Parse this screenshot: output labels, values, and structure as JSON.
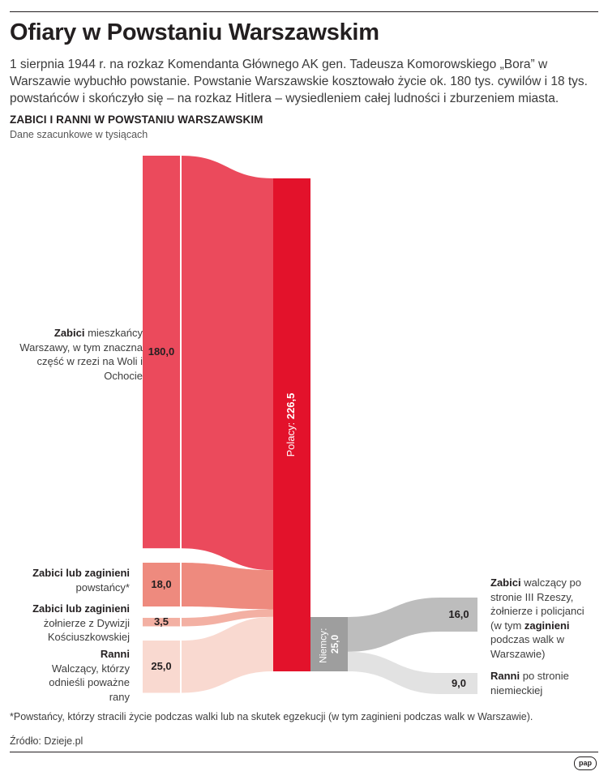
{
  "title": "Ofiary w Powstaniu Warszawskim",
  "intro": "1 sierpnia 1944 r. na rozkaz Komendanta Głównego AK gen. Tadeusza Komorowskiego „Bora” w Warszawie wybuchło powstanie. Powstanie Warszawskie kosztowało życie ok. 180 tys. cywilów i 18 tys. powstańców i skończyło się – na rozkaz Hitlera – wysiedleniem całej ludności i zburzeniem miasta.",
  "chart_title": "ZABICI I RANNI W POWSTANIU WARSZAWSKIM",
  "chart_subtitle": "Dane szacunkowe w tysiącach",
  "notes": {
    "civilians": {
      "bold": "Zabici",
      "rest": " mieszkańcy Warszawy, w tym znaczna część w rzezi na Woli i Ochocie"
    },
    "insurgents": {
      "bold": "Zabici lub zaginieni",
      "rest": "powstańcy*"
    },
    "berling": {
      "bold": "Zabici lub zaginieni",
      "rest": "żołnierze z Dywizji Kościuszkowskiej"
    },
    "wounded_pl": {
      "bold": "Ranni",
      "rest": "Walczący, którzy odnieśli poważne rany"
    },
    "killed_de": {
      "bold1": "Zabici",
      "rest1": " walczący po stronie III Rzeszy, żołnierze i policjanci (w tym ",
      "bold2": "zaginieni",
      "rest2": " podczas walk w Warszawie)"
    },
    "wounded_de": {
      "bold": "Ranni",
      "rest": " po stronie niemieckiej"
    }
  },
  "footnote": "*Powstańcy, którzy stracili życie podczas walki lub na skutek egzekucji (w tym zaginieni podczas walk w Warszawie).",
  "source": "Źródło: Dzieje.pl",
  "logo": "pap",
  "colors": {
    "red_main": "#e3122b",
    "red_civilians": "#eb4a5c",
    "salmon": "#ee8a7e",
    "light_salmon": "#f3b0a3",
    "pale_pink": "#f9d9d0",
    "gray_dark": "#9e9e9e",
    "gray_mid": "#bdbdbd",
    "gray_light": "#e2e2e2"
  },
  "chart_data": {
    "type": "sankey",
    "title": "ZABICI I RANNI W POWSTANIU WARSZAWSKIM",
    "subtitle": "Dane szacunkowe w tysiącach",
    "unit": "tys.",
    "nodes": [
      {
        "id": "civilians",
        "value": 180.0,
        "label": "180,0",
        "side": "Polacy"
      },
      {
        "id": "insurgents",
        "value": 18.0,
        "label": "18,0",
        "side": "Polacy"
      },
      {
        "id": "berling",
        "value": 3.5,
        "label": "3,5",
        "side": "Polacy"
      },
      {
        "id": "wounded_pl",
        "value": 25.0,
        "label": "25,0",
        "side": "Polacy"
      },
      {
        "id": "polacy",
        "value": 226.5,
        "label_prefix": "Polacy: ",
        "label": "226,5"
      },
      {
        "id": "niemcy",
        "value": 25.0,
        "label_prefix": "Niemcy: ",
        "label": "25,0"
      },
      {
        "id": "killed_de",
        "value": 16.0,
        "label": "16,0",
        "side": "Niemcy"
      },
      {
        "id": "wounded_de",
        "value": 9.0,
        "label": "9,0",
        "side": "Niemcy"
      }
    ],
    "links": [
      {
        "source": "civilians",
        "target": "polacy",
        "value": 180.0
      },
      {
        "source": "insurgents",
        "target": "polacy",
        "value": 18.0
      },
      {
        "source": "berling",
        "target": "polacy",
        "value": 3.5
      },
      {
        "source": "wounded_pl",
        "target": "polacy",
        "value": 25.0
      },
      {
        "source": "niemcy",
        "target": "killed_de",
        "value": 16.0
      },
      {
        "source": "niemcy",
        "target": "wounded_de",
        "value": 9.0
      }
    ]
  }
}
